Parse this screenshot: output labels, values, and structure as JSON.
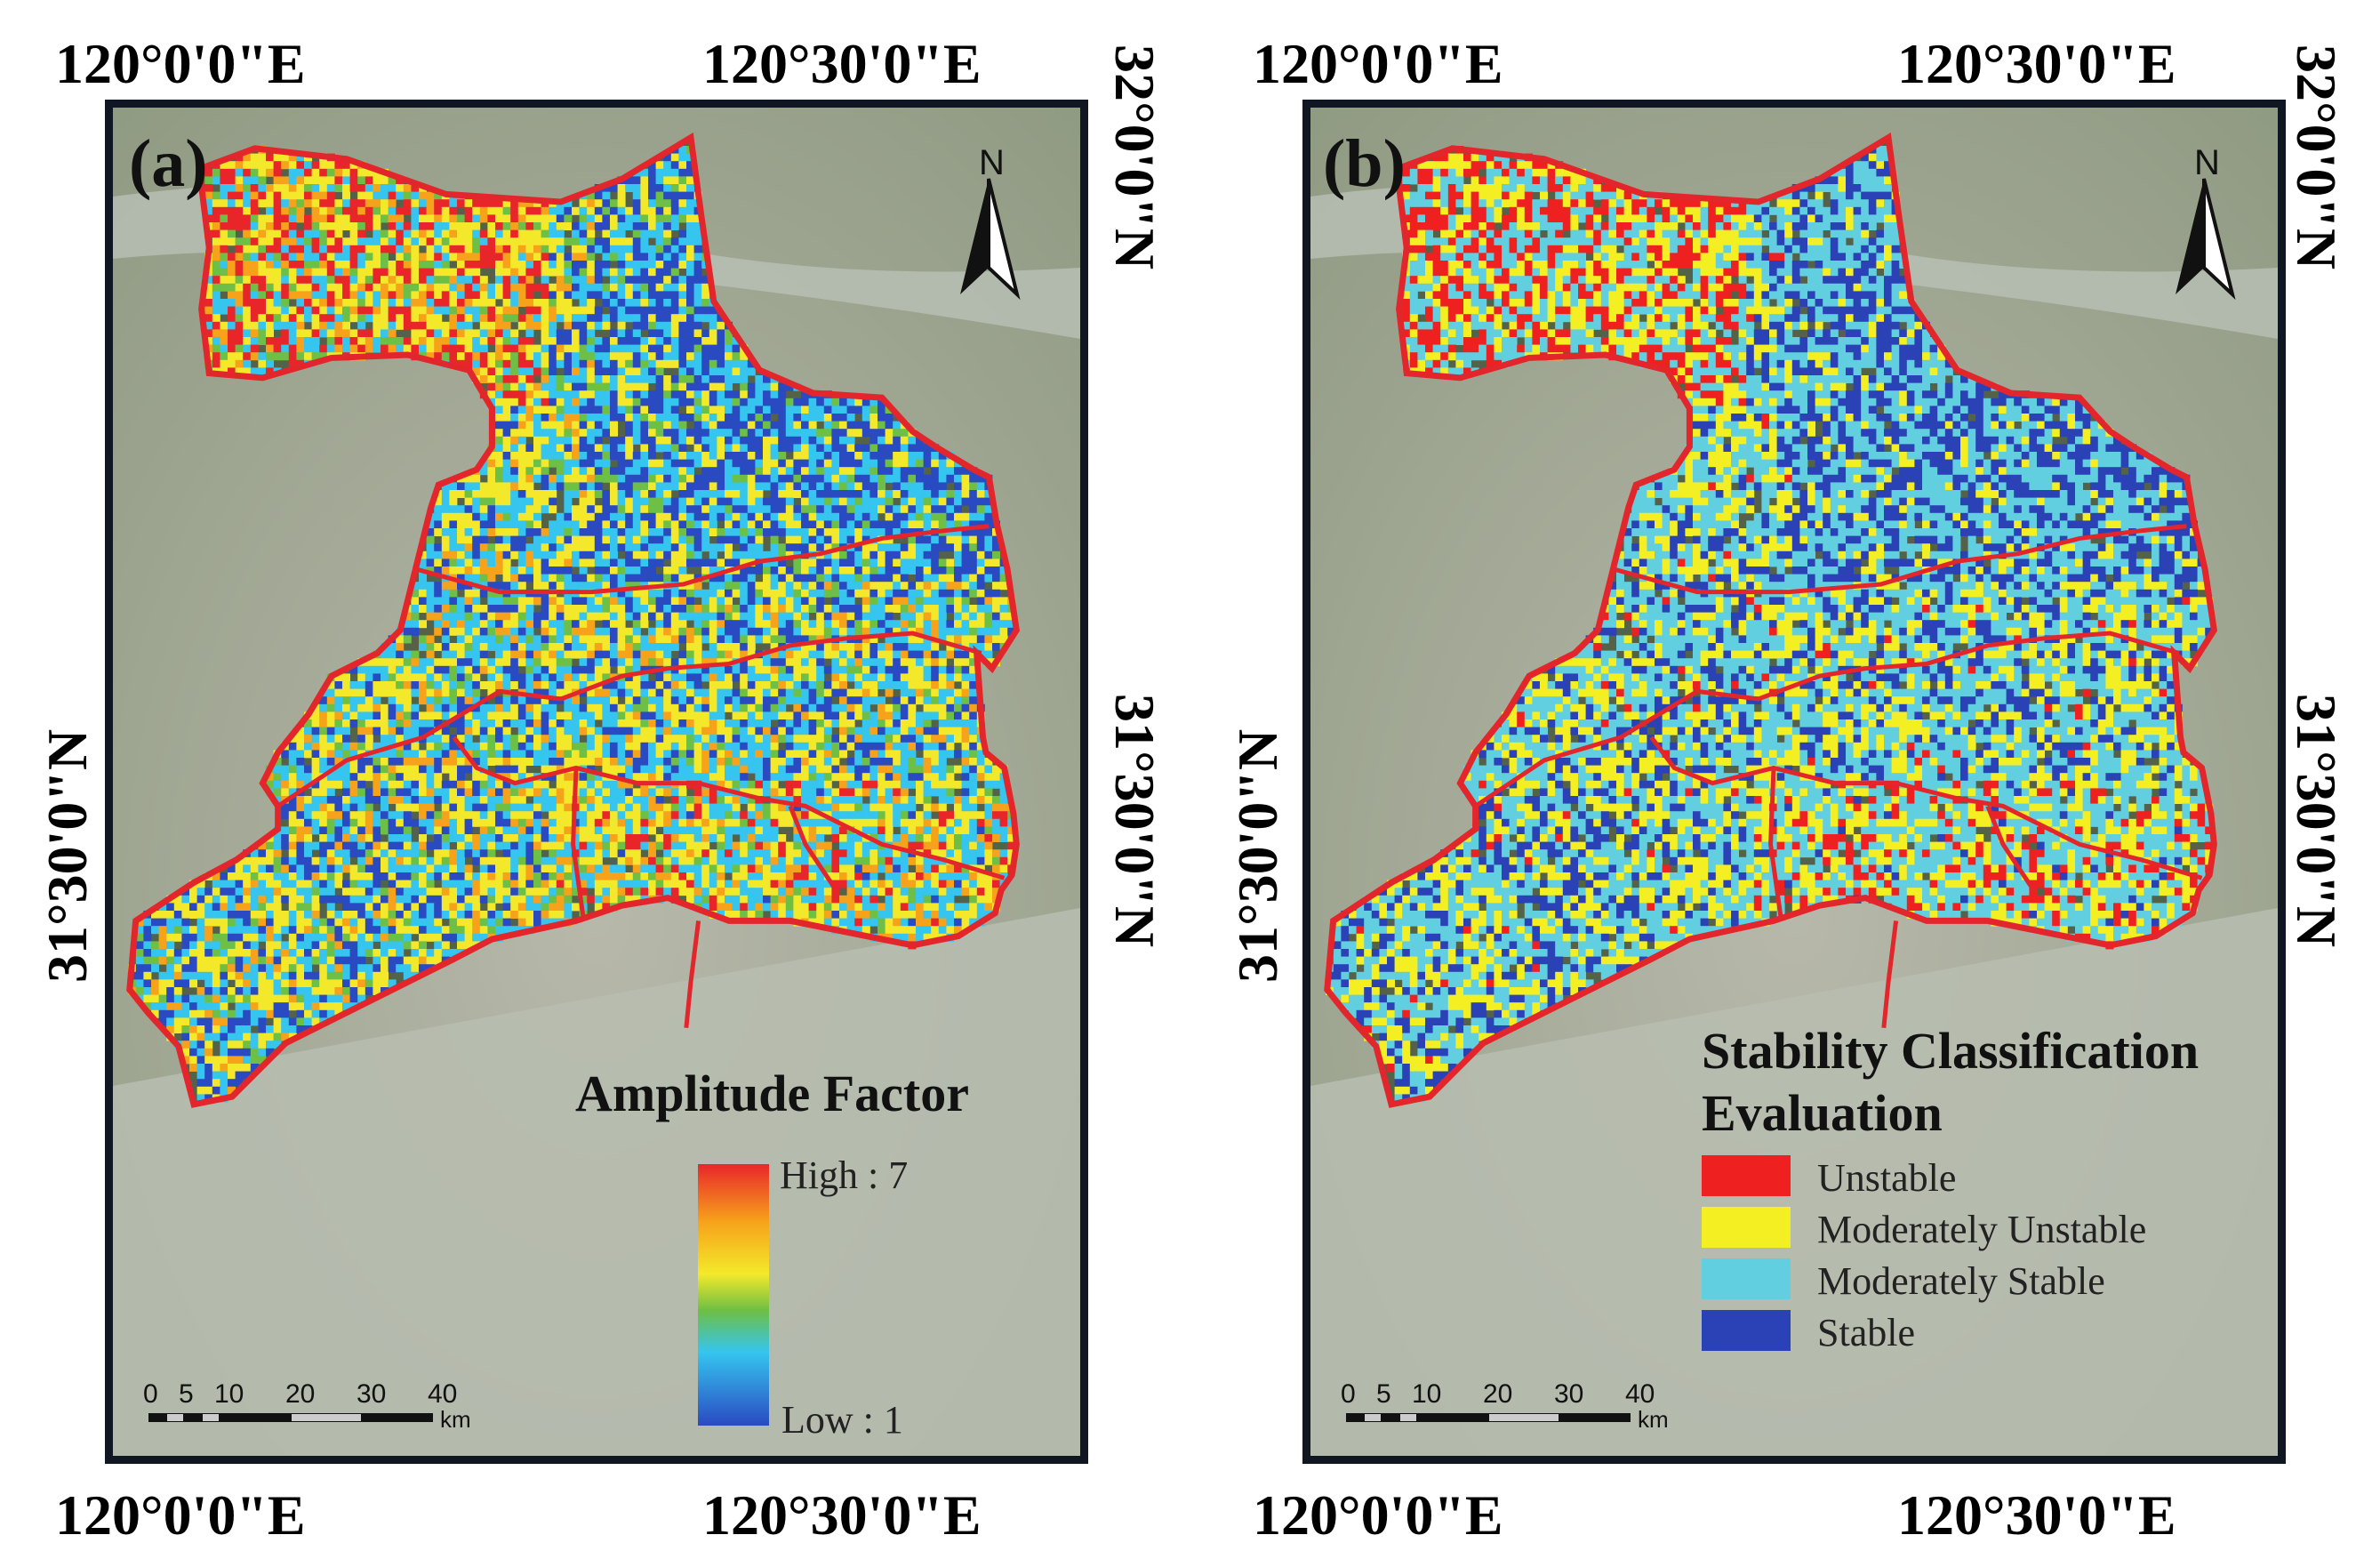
{
  "coords": {
    "lon_left": "120°0'0\"E",
    "lon_right": "120°30'0\"E",
    "lat_top": "32°0'0\"N",
    "lat_mid": "31°30'0\"N"
  },
  "north": "N",
  "panel_a": {
    "label": "(a)",
    "legend_title": "Amplitude Factor",
    "legend_high": "High : 7",
    "legend_low": "Low : 1",
    "colors": [
      "#e8262a",
      "#f7a21b",
      "#f3e92a",
      "#6dbf45",
      "#35c5ef",
      "#2a4ac2"
    ]
  },
  "panel_b": {
    "label": "(b)",
    "legend_title_line1": "Stability Classification",
    "legend_title_line2": "Evaluation",
    "classes": [
      {
        "label": "Unstable",
        "color": "#ee2020"
      },
      {
        "label": "Moderately Unstable",
        "color": "#f4ef22"
      },
      {
        "label": "Moderately Stable",
        "color": "#62cfe0"
      },
      {
        "label": "Stable",
        "color": "#2a42b5"
      }
    ]
  },
  "scale_bar": {
    "ticks": [
      "0",
      "5",
      "10",
      "20",
      "30",
      "40"
    ],
    "unit": "km"
  },
  "boundary_color": "#e3262c"
}
